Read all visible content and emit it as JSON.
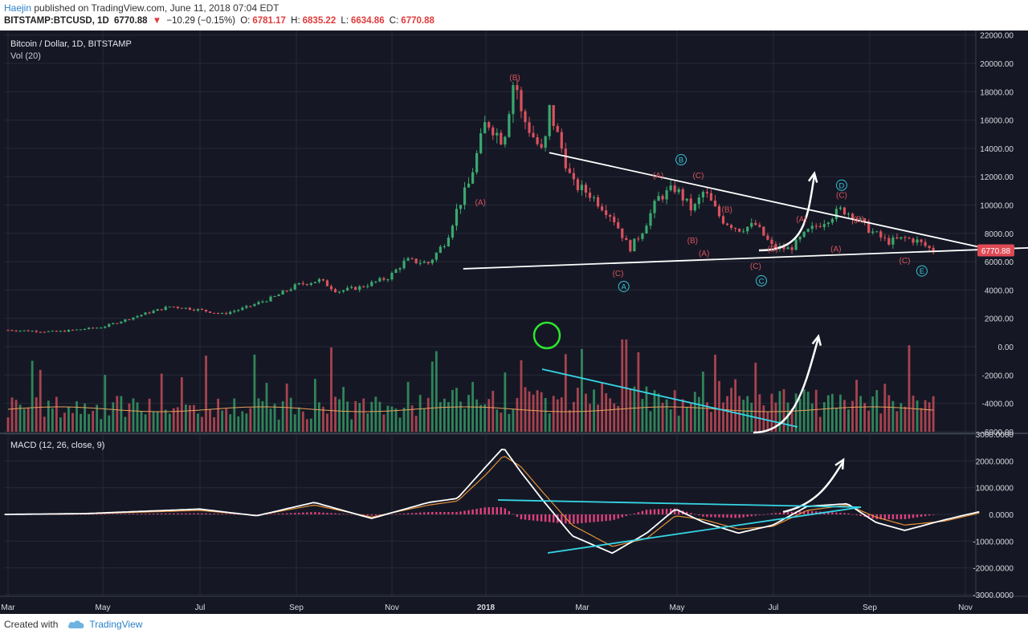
{
  "header": {
    "author": "Haejin",
    "published": "published on TradingView.com, June 11, 2018 07:04 EDT",
    "symbol": "BITSTAMP:BTCUSD, 1D",
    "last": "6770.88",
    "change_arrow": "▼",
    "change": "−10.29 (−0.15%)",
    "open_label": "O:",
    "open": "6781.17",
    "high_label": "H:",
    "high": "6835.22",
    "low_label": "L:",
    "low": "6634.86",
    "close_label": "C:",
    "close": "6770.88"
  },
  "footer": {
    "created_with": "Created with",
    "brand": "TradingView",
    "brand_icon": "cloud-logo-icon"
  },
  "colors": {
    "bg": "#151824",
    "up": "#3aa86e",
    "down": "#d9525e",
    "grid": "#262a36",
    "label_wave": "#d9525e",
    "label_circle": "#35c3d8",
    "line_white": "#ffffff",
    "line_cyan": "#35d6e6",
    "vol_ma": "#e6a05a",
    "macd": "#ffffff",
    "signal": "#e6913a",
    "hist": "#e0407e",
    "price_tag": "#e04a55",
    "green_circle": "#2ee52e"
  },
  "chart_data": [
    {
      "type": "candlestick",
      "title": "Bitcoin / Dollar, 1D, BITSTAMP",
      "subtitle": "Vol (20)",
      "x_ticks": [
        "Mar",
        "May",
        "Jul",
        "Sep",
        "Nov",
        "2018",
        "Mar",
        "May",
        "Jul",
        "Sep",
        "Nov"
      ],
      "y_ticks": [
        "22000.00",
        "20000.00",
        "18000.00",
        "16000.00",
        "14000.00",
        "12000.00",
        "10000.00",
        "8000.00",
        "6000.00",
        "4000.00",
        "2000.00",
        "0.00",
        "-2000.00",
        "-4000.00",
        "-6000.00"
      ],
      "ylim": [
        -6000,
        22000
      ],
      "last_price": "6770.88",
      "price_path": [
        [
          2017.16,
          1180
        ],
        [
          2017.25,
          1050
        ],
        [
          2017.33,
          1380
        ],
        [
          2017.41,
          2400
        ],
        [
          2017.45,
          2850
        ],
        [
          2017.5,
          2600
        ],
        [
          2017.54,
          2300
        ],
        [
          2017.58,
          2750
        ],
        [
          2017.63,
          3500
        ],
        [
          2017.67,
          4350
        ],
        [
          2017.71,
          4700
        ],
        [
          2017.74,
          3900
        ],
        [
          2017.78,
          4200
        ],
        [
          2017.83,
          4900
        ],
        [
          2017.86,
          6100
        ],
        [
          2017.9,
          5900
        ],
        [
          2017.93,
          7500
        ],
        [
          2017.95,
          9800
        ],
        [
          2017.97,
          11500
        ],
        [
          2018.0,
          16000
        ],
        [
          2018.03,
          14500
        ],
        [
          2018.05,
          19300
        ],
        [
          2018.06,
          16500
        ],
        [
          2018.08,
          15000
        ],
        [
          2018.1,
          13500
        ],
        [
          2018.11,
          16800
        ],
        [
          2018.13,
          14200
        ],
        [
          2018.15,
          11500
        ],
        [
          2018.18,
          10800
        ],
        [
          2018.22,
          9200
        ],
        [
          2018.25,
          6900
        ],
        [
          2018.27,
          8000
        ],
        [
          2018.3,
          10500
        ],
        [
          2018.33,
          11200
        ],
        [
          2018.36,
          9600
        ],
        [
          2018.38,
          11000
        ],
        [
          2018.41,
          9000
        ],
        [
          2018.44,
          8300
        ],
        [
          2018.47,
          8600
        ],
        [
          2018.5,
          7000
        ],
        [
          2018.53,
          6900
        ],
        [
          2018.56,
          8100
        ],
        [
          2018.59,
          8900
        ],
        [
          2018.62,
          9700
        ],
        [
          2018.64,
          9300
        ],
        [
          2018.67,
          8200
        ],
        [
          2018.7,
          7400
        ],
        [
          2018.73,
          7650
        ],
        [
          2018.75,
          7500
        ],
        [
          2018.78,
          6770
        ]
      ],
      "volume": {
        "approx_peak": 1000,
        "baseline": -5400
      },
      "wave_labels": [
        {
          "text": "(B)",
          "x": 2018.05,
          "y": 18800
        },
        {
          "text": "(A)",
          "x": 2017.99,
          "y": 10000
        },
        {
          "text": "(A)",
          "x": 2018.3,
          "y": 11900
        },
        {
          "text": "(C)",
          "x": 2018.37,
          "y": 11900
        },
        {
          "text": "(B)",
          "x": 2018.36,
          "y": 7300
        },
        {
          "text": "(C)",
          "x": 2018.23,
          "y": 5000
        },
        {
          "text": "(B)",
          "x": 2018.42,
          "y": 9500
        },
        {
          "text": "(A)",
          "x": 2018.38,
          "y": 6400
        },
        {
          "text": "(C)",
          "x": 2018.47,
          "y": 5500
        },
        {
          "text": "(B)",
          "x": 2018.5,
          "y": 6700
        },
        {
          "text": "(A)",
          "x": 2018.55,
          "y": 8800
        },
        {
          "text": "(C)",
          "x": 2018.62,
          "y": 10500
        },
        {
          "text": "(B)",
          "x": 2018.65,
          "y": 8800
        },
        {
          "text": "(A)",
          "x": 2018.61,
          "y": 6700
        },
        {
          "text": "(C)",
          "x": 2018.73,
          "y": 5900
        }
      ],
      "circle_labels": [
        {
          "text": "A",
          "x": 2018.24,
          "y": 4250
        },
        {
          "text": "B",
          "x": 2018.34,
          "y": 13200
        },
        {
          "text": "C",
          "x": 2018.48,
          "y": 4650
        },
        {
          "text": "D",
          "x": 2018.62,
          "y": 11400
        },
        {
          "text": "E",
          "x": 2018.76,
          "y": 5350
        }
      ],
      "trendlines": [
        {
          "color": "white",
          "from": [
            2018.11,
            13700
          ],
          "to": [
            2018.92,
            6500
          ]
        },
        {
          "color": "white",
          "from": [
            2017.96,
            5500
          ],
          "to": [
            2018.96,
            7000
          ]
        },
        {
          "color": "cyan",
          "from": [
            2018.24,
            -1600
          ],
          "to": [
            2018.81,
            -5700
          ]
        }
      ]
    },
    {
      "type": "line",
      "title": "MACD (12, 26, close, 9)",
      "y_ticks": [
        "3000.0000",
        "2000.0000",
        "1000.0000",
        "0.0000",
        "-1000.0000",
        "-2000.0000",
        "-3000.0000"
      ],
      "ylim": [
        -3000,
        3000
      ],
      "series": [
        {
          "name": "MACD",
          "values": [
            [
              2017.16,
              0
            ],
            [
              2017.3,
              30
            ],
            [
              2017.5,
              200
            ],
            [
              2017.6,
              -50
            ],
            [
              2017.7,
              450
            ],
            [
              2017.8,
              -150
            ],
            [
              2017.9,
              450
            ],
            [
              2017.95,
              600
            ],
            [
              2018.0,
              1800
            ],
            [
              2018.03,
              2500
            ],
            [
              2018.06,
              1600
            ],
            [
              2018.1,
              500
            ],
            [
              2018.15,
              -800
            ],
            [
              2018.22,
              -1450
            ],
            [
              2018.28,
              -700
            ],
            [
              2018.33,
              200
            ],
            [
              2018.38,
              -300
            ],
            [
              2018.44,
              -700
            ],
            [
              2018.5,
              -400
            ],
            [
              2018.56,
              300
            ],
            [
              2018.63,
              400
            ],
            [
              2018.68,
              -300
            ],
            [
              2018.73,
              -600
            ],
            [
              2018.8,
              -200
            ],
            [
              2018.86,
              100
            ]
          ]
        },
        {
          "name": "Signal",
          "values": [
            [
              2017.16,
              0
            ],
            [
              2017.3,
              20
            ],
            [
              2017.5,
              150
            ],
            [
              2017.6,
              -40
            ],
            [
              2017.7,
              350
            ],
            [
              2017.8,
              -100
            ],
            [
              2017.9,
              350
            ],
            [
              2017.95,
              500
            ],
            [
              2018.0,
              1500
            ],
            [
              2018.03,
              2200
            ],
            [
              2018.06,
              1800
            ],
            [
              2018.1,
              800
            ],
            [
              2018.15,
              -400
            ],
            [
              2018.22,
              -1200
            ],
            [
              2018.28,
              -900
            ],
            [
              2018.33,
              -50
            ],
            [
              2018.38,
              -200
            ],
            [
              2018.44,
              -550
            ],
            [
              2018.5,
              -450
            ],
            [
              2018.56,
              150
            ],
            [
              2018.63,
              350
            ],
            [
              2018.68,
              -100
            ],
            [
              2018.73,
              -400
            ],
            [
              2018.8,
              -250
            ],
            [
              2018.86,
              50
            ]
          ]
        }
      ]
    }
  ]
}
